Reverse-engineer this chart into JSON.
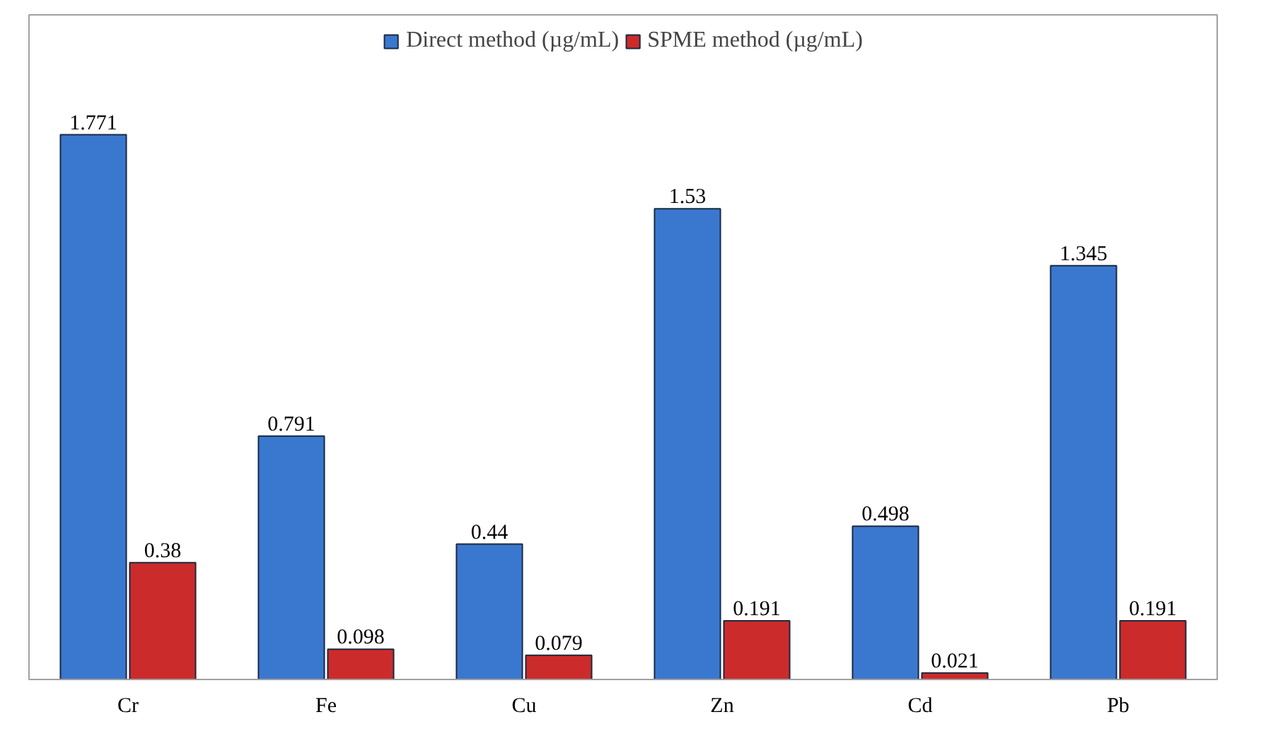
{
  "chart_data": {
    "type": "bar",
    "categories": [
      "Cr",
      "Fe",
      "Cu",
      "Zn",
      "Cd",
      "Pb"
    ],
    "series": [
      {
        "name": "Direct method (µg/mL)",
        "color": "#3a78cf",
        "values": [
          1.771,
          0.791,
          0.44,
          1.53,
          0.498,
          1.345
        ]
      },
      {
        "name": "SPME method (µg/mL)",
        "color": "#cc2b2b",
        "values": [
          0.38,
          0.098,
          0.079,
          0.191,
          0.021,
          0.191
        ]
      }
    ],
    "data_labels": true,
    "legend": "top",
    "grid": false
  }
}
